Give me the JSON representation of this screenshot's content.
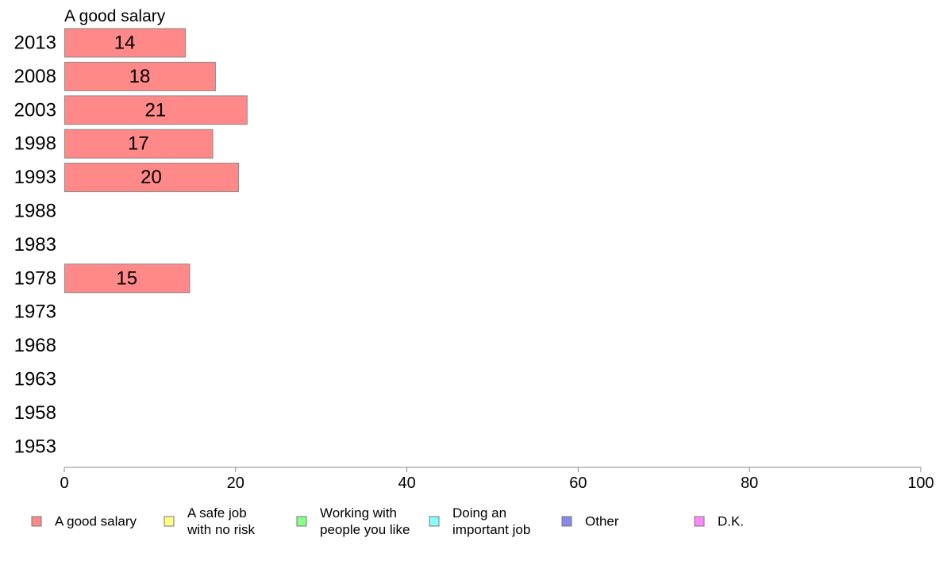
{
  "chart_data": {
    "type": "bar",
    "orientation": "horizontal",
    "title": "A good salary",
    "categories": [
      "2013",
      "2008",
      "2003",
      "1998",
      "1993",
      "1988",
      "1983",
      "1978",
      "1973",
      "1968",
      "1963",
      "1958",
      "1953"
    ],
    "series": [
      {
        "name": "A good salary",
        "color": "#ff8888",
        "values": [
          14.1,
          17.6,
          21.3,
          17.3,
          20.3,
          null,
          null,
          14.6,
          null,
          null,
          null,
          null,
          null
        ],
        "labels": [
          "14",
          "18",
          "21",
          "17",
          "20",
          null,
          null,
          "15",
          null,
          null,
          null,
          null,
          null
        ]
      }
    ],
    "xlim": [
      0,
      100
    ],
    "xticks": [
      0,
      20,
      40,
      60,
      80,
      100
    ],
    "grid": false,
    "legend": {
      "placement": "bottom",
      "entries": [
        {
          "lines": [
            "A good salary"
          ],
          "color": "#ff8888"
        },
        {
          "lines": [
            "A safe job",
            "with no risk"
          ],
          "color": "#ffff88"
        },
        {
          "lines": [
            "Working with",
            "people you like"
          ],
          "color": "#88ff88"
        },
        {
          "lines": [
            "Doing an",
            "important job"
          ],
          "color": "#88ffff"
        },
        {
          "lines": [
            "Other"
          ],
          "color": "#8888ee"
        },
        {
          "lines": [
            "D.K."
          ],
          "color": "#ff88ff"
        }
      ]
    }
  }
}
